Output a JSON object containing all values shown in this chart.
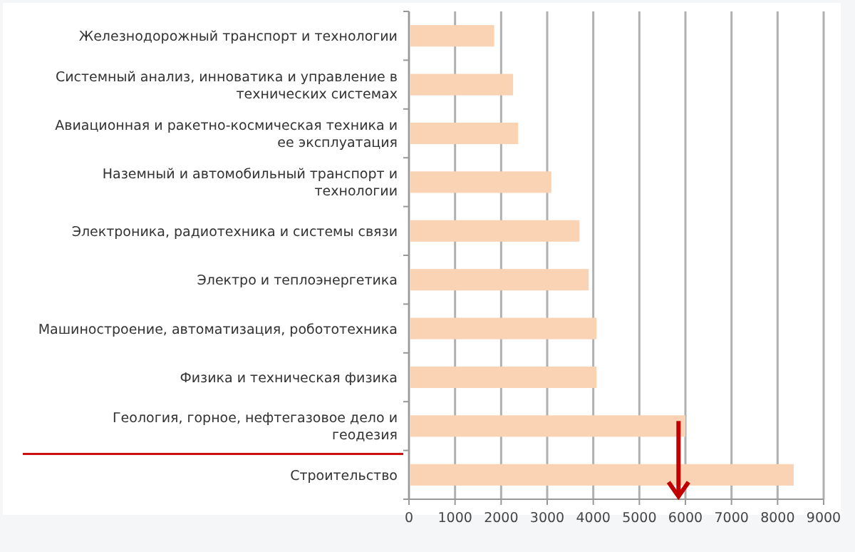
{
  "chart_data": {
    "type": "bar",
    "orientation": "horizontal",
    "categories": [
      "Железнодорожный транспорт и технологии",
      "Системный анализ, инноватика и управление в технических системах",
      "Авиационная и ракетно-космическая техника и ее эксплуатация",
      "Наземный и автомобильный транспорт и технологии",
      "Электроника, радиотехника и системы связи",
      "Электро и теплоэнергетика",
      "Машиностроение, автоматизация, робототехника",
      "Физика и техническая физика",
      "Геология, горное, нефтегазовое дело и геодезия",
      "Строительство"
    ],
    "values": [
      1850,
      2260,
      2370,
      3090,
      3700,
      3900,
      4070,
      4070,
      6000,
      8350
    ],
    "color": "#fad3b4",
    "xlim": [
      0,
      9000
    ],
    "xticks": [
      0,
      1000,
      2000,
      3000,
      4000,
      5000,
      6000,
      7000,
      8000,
      9000
    ],
    "grid": "x"
  }
}
